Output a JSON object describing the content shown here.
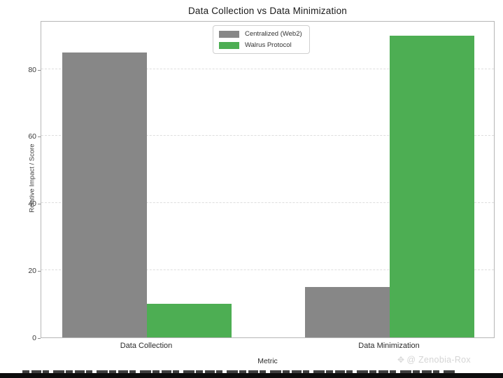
{
  "chart_data": {
    "type": "bar",
    "title": "Data Collection vs Data Minimization",
    "xlabel": "Metric",
    "ylabel": "Relative Impact / Score",
    "categories": [
      "Data Collection",
      "Data Minimization"
    ],
    "series": [
      {
        "name": "Centralized (Web2)",
        "color": "#878787",
        "values": [
          85,
          15
        ]
      },
      {
        "name": "Walrus Protocol",
        "color": "#4dae53",
        "values": [
          10,
          90
        ]
      }
    ],
    "ylim": [
      0,
      94.5
    ],
    "yticks": [
      0,
      20,
      40,
      60,
      80
    ],
    "grid": "horizontal-dashed",
    "legend_position": "upper center",
    "colors": {
      "grid": "#dedede",
      "spine": "#b6b6b6",
      "tick_text": "#3b3b3b",
      "title_text": "#1a1a1a"
    }
  },
  "watermark": {
    "icon": "compass-ornament",
    "icon_glyph": "✥",
    "text": "@ Zenobia-Rox"
  }
}
